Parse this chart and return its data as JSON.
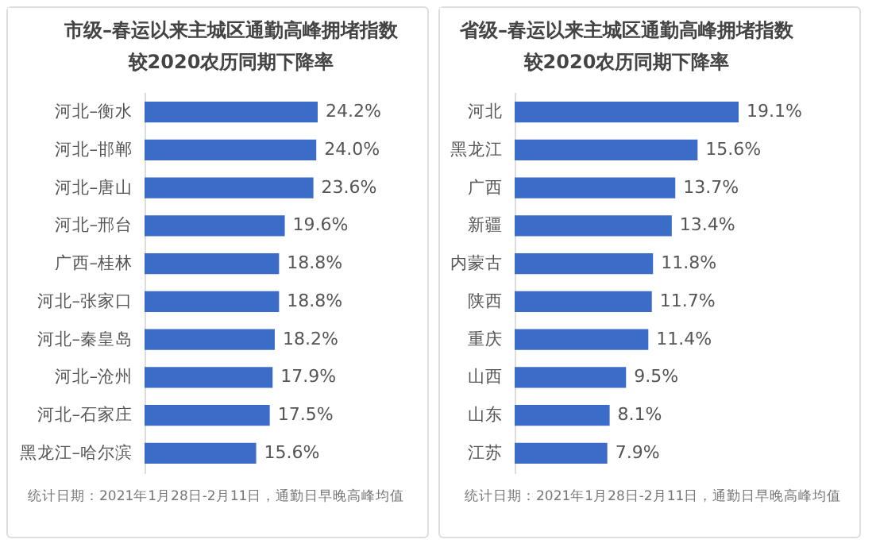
{
  "chart_data": [
    {
      "type": "bar",
      "orientation": "horizontal",
      "tick_labels": "y",
      "title": "市级–春运以来主城区通勤高峰拥堵指数",
      "subtitle": "较2020农历同期下降率",
      "categories": [
        "河北–衡水",
        "河北–邯郸",
        "河北–唐山",
        "河北–邢台",
        "广西–桂林",
        "河北–张家口",
        "河北–秦皇岛",
        "河北–沧州",
        "河北–石家庄",
        "黑龙江–哈尔滨"
      ],
      "values": [
        24.2,
        24.0,
        23.6,
        19.6,
        18.8,
        18.8,
        18.2,
        17.9,
        17.5,
        15.6
      ],
      "value_labels": [
        "24.2%",
        "24.0%",
        "23.6%",
        "19.6%",
        "18.8%",
        "18.8%",
        "18.2%",
        "17.9%",
        "17.5%",
        "15.6%"
      ],
      "color": "#3b6cc8",
      "annotations": [
        "统计日期：2021年1月28日-2月11日，通勤日早晚高峰均值"
      ]
    },
    {
      "type": "bar",
      "orientation": "horizontal",
      "tick_labels": "y",
      "title": "省级–春运以来主城区通勤高峰拥堵指数",
      "subtitle": "较2020农历同期下降率",
      "categories": [
        "河北",
        "黑龙江",
        "广西",
        "新疆",
        "内蒙古",
        "陕西",
        "重庆",
        "山西",
        "山东",
        "江苏"
      ],
      "values": [
        19.1,
        15.6,
        13.7,
        13.4,
        11.8,
        11.7,
        11.4,
        9.5,
        8.1,
        7.9
      ],
      "value_labels": [
        "19.1%",
        "15.6%",
        "13.7%",
        "13.4%",
        "11.8%",
        "11.7%",
        "11.4%",
        "9.5%",
        "8.1%",
        "7.9%"
      ],
      "color": "#3b6cc8",
      "annotations": [
        "统计日期：2021年1月28日-2月11日，通勤日早晚高峰均值"
      ]
    }
  ]
}
